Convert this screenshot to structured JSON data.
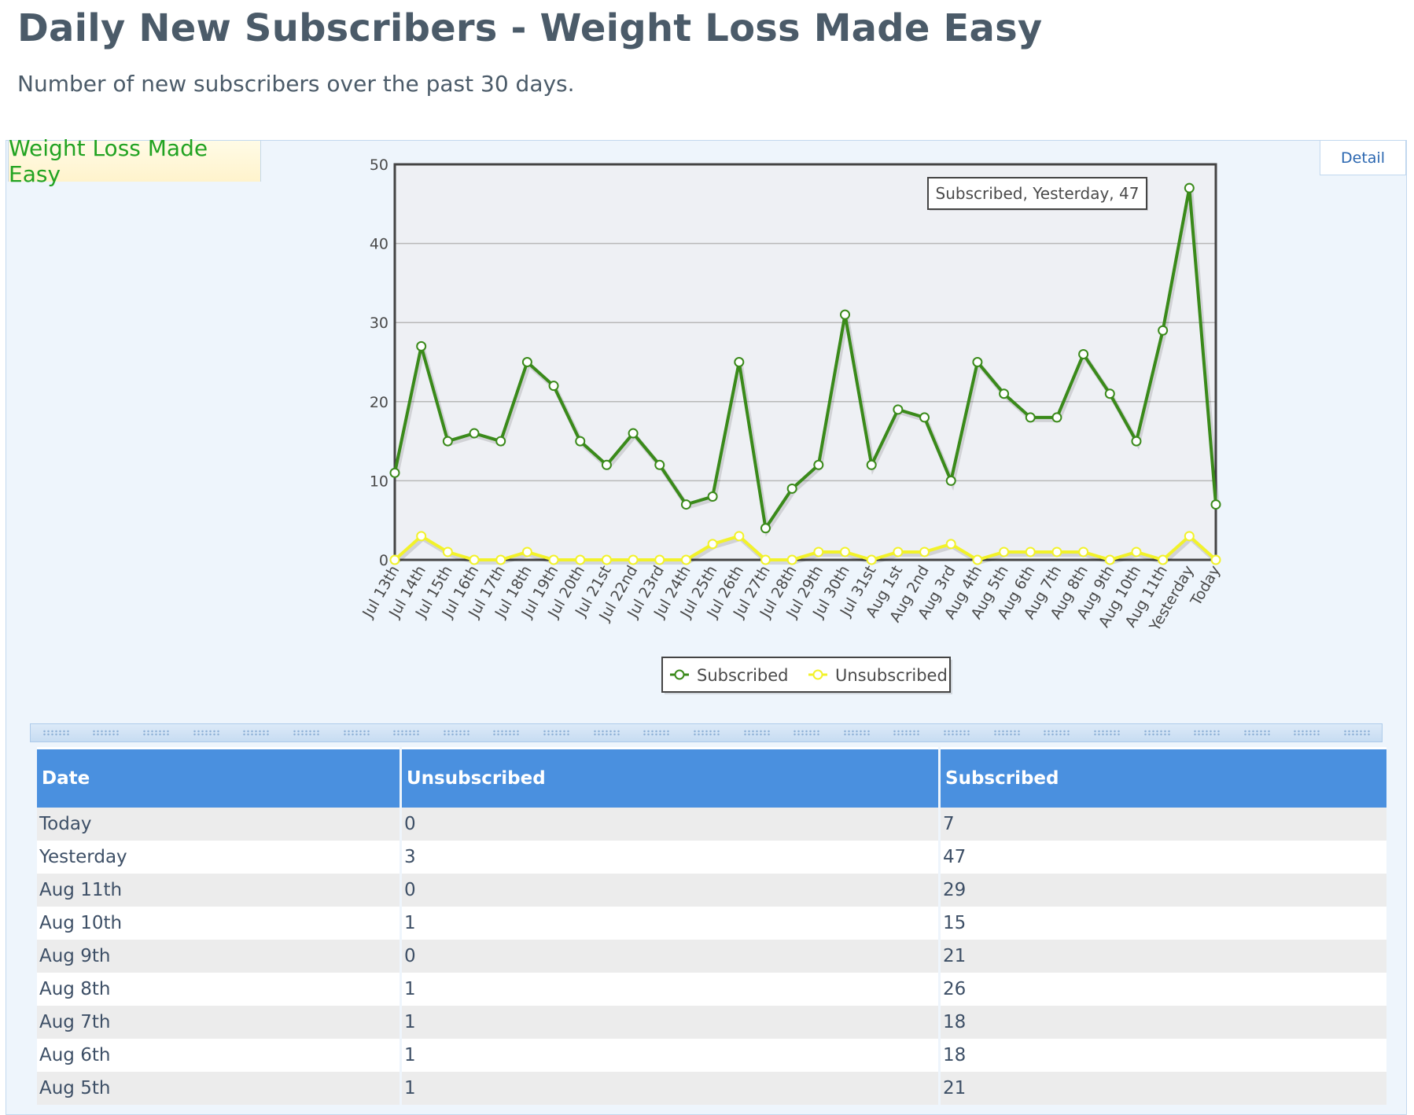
{
  "header": {
    "title": "Daily New Subscribers - Weight Loss Made Easy",
    "subtitle": "Number of new subscribers over the past 30 days."
  },
  "tabs": {
    "active_label": "Weight Loss Made Easy",
    "detail_label": "Detail"
  },
  "chart_data": {
    "type": "line",
    "title": "",
    "xlabel": "",
    "ylabel": "",
    "ylim": [
      0,
      50
    ],
    "yticks": [
      0,
      10,
      20,
      30,
      40,
      50
    ],
    "grid": true,
    "legend_position": "bottom-center",
    "categories": [
      "Jul 13th",
      "Jul 14th",
      "Jul 15th",
      "Jul 16th",
      "Jul 17th",
      "Jul 18th",
      "Jul 19th",
      "Jul 20th",
      "Jul 21st",
      "Jul 22nd",
      "Jul 23rd",
      "Jul 24th",
      "Jul 25th",
      "Jul 26th",
      "Jul 27th",
      "Jul 28th",
      "Jul 29th",
      "Jul 30th",
      "Jul 31st",
      "Aug 1st",
      "Aug 2nd",
      "Aug 3rd",
      "Aug 4th",
      "Aug 5th",
      "Aug 6th",
      "Aug 7th",
      "Aug 8th",
      "Aug 9th",
      "Aug 10th",
      "Aug 11th",
      "Yesterday",
      "Today"
    ],
    "series": [
      {
        "name": "Subscribed",
        "color": "#3a8a1a",
        "values": [
          11,
          27,
          15,
          16,
          15,
          25,
          22,
          15,
          12,
          16,
          12,
          7,
          8,
          25,
          4,
          9,
          12,
          31,
          12,
          19,
          18,
          10,
          25,
          21,
          18,
          18,
          26,
          21,
          15,
          29,
          47,
          7
        ]
      },
      {
        "name": "Unsubscribed",
        "color": "#f2f22a",
        "values": [
          0,
          3,
          1,
          0,
          0,
          1,
          0,
          0,
          0,
          0,
          0,
          0,
          2,
          3,
          0,
          0,
          1,
          1,
          0,
          1,
          1,
          2,
          0,
          1,
          1,
          1,
          1,
          0,
          1,
          0,
          3,
          0
        ]
      }
    ],
    "tooltip": "Subscribed, Yesterday, 47"
  },
  "table": {
    "headers": [
      "Date",
      "Unsubscribed",
      "Subscribed"
    ],
    "rows": [
      [
        "Today",
        "0",
        "7"
      ],
      [
        "Yesterday",
        "3",
        "47"
      ],
      [
        "Aug 11th",
        "0",
        "29"
      ],
      [
        "Aug 10th",
        "1",
        "15"
      ],
      [
        "Aug 9th",
        "0",
        "21"
      ],
      [
        "Aug 8th",
        "1",
        "26"
      ],
      [
        "Aug 7th",
        "1",
        "18"
      ],
      [
        "Aug 6th",
        "1",
        "18"
      ],
      [
        "Aug 5th",
        "1",
        "21"
      ]
    ]
  }
}
